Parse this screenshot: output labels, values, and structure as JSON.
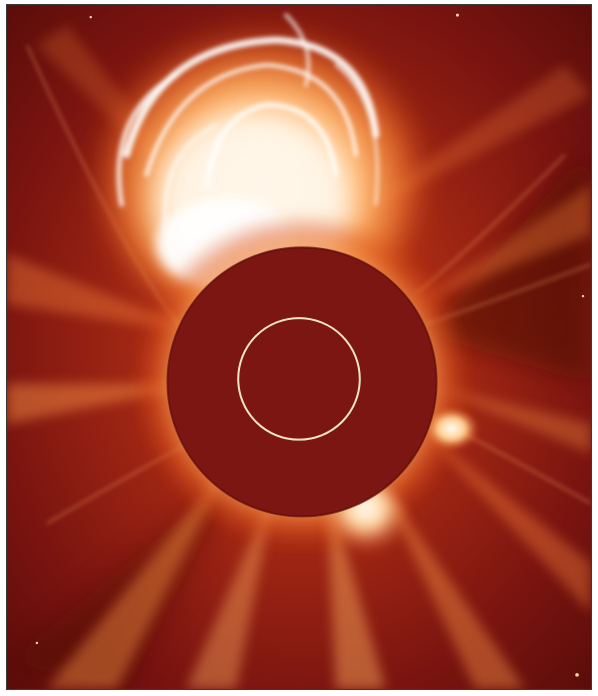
{
  "image": {
    "subject": "coronagraph-cme",
    "colors": {
      "background": "#7a1410",
      "mid": "#c8421a",
      "bright": "#ff9a3c",
      "hot": "#fff4e0",
      "occulter": "#7c1612",
      "sun_outline": "#f4e6c0",
      "frame_border": "#3a3a3a"
    }
  }
}
